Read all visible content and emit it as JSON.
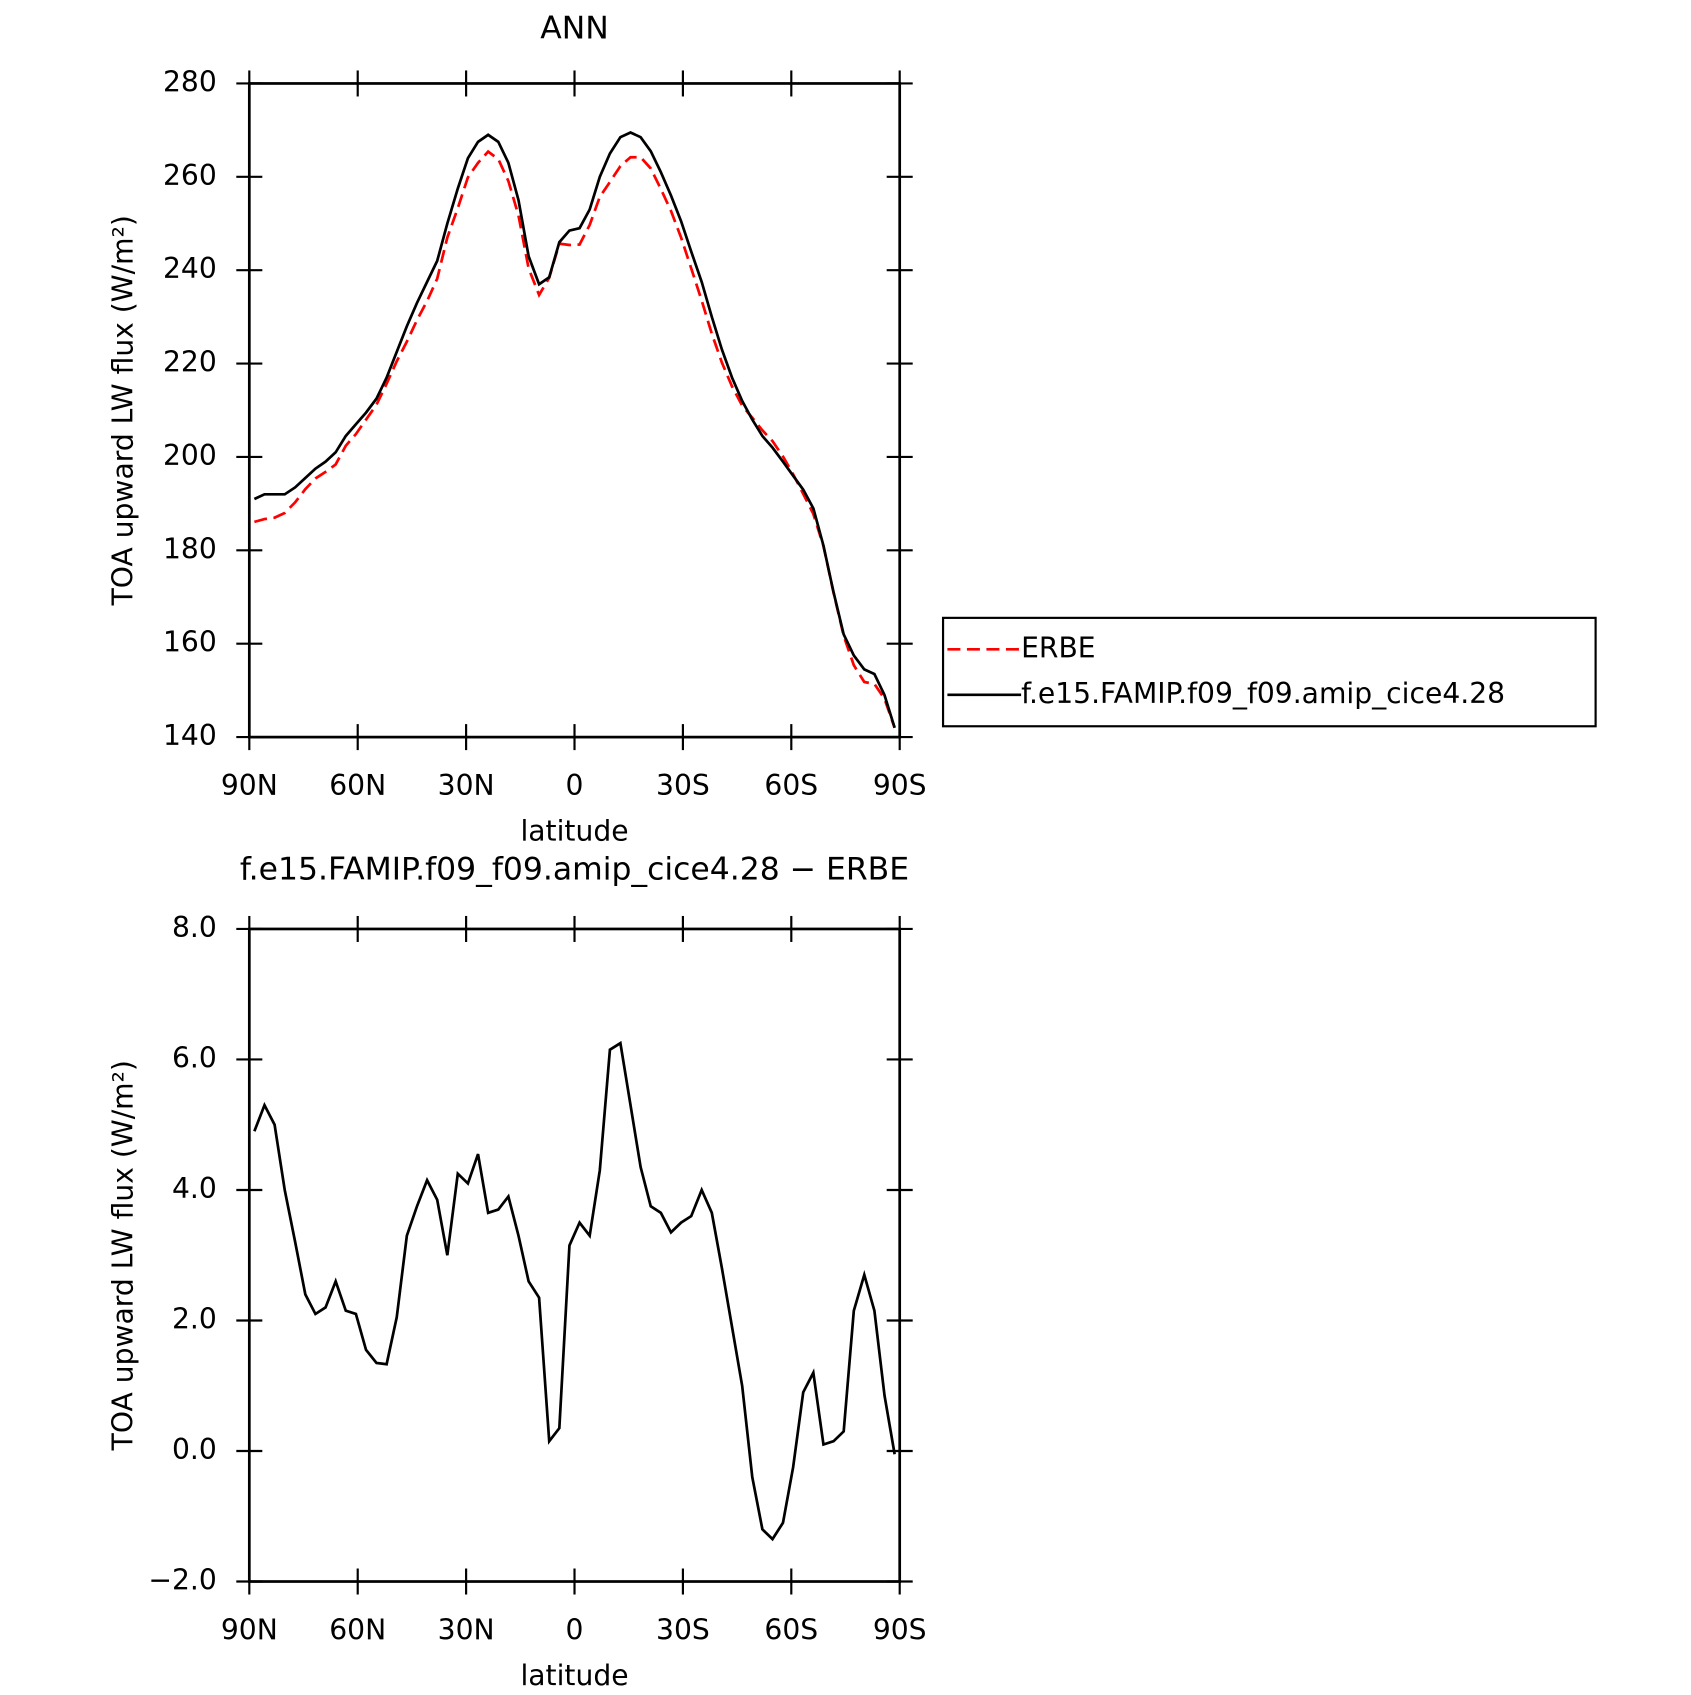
{
  "chart_data": [
    {
      "type": "line",
      "title": "ANN",
      "x_label": "latitude",
      "y_label": "TOA upward LW flux (W/m²)",
      "x": [
        88.6,
        85.8,
        83.0,
        80.2,
        77.3,
        74.5,
        71.7,
        68.9,
        66.1,
        63.3,
        60.5,
        57.7,
        54.8,
        52.0,
        49.2,
        46.4,
        43.6,
        40.8,
        38.0,
        35.2,
        32.3,
        29.5,
        26.7,
        23.9,
        21.1,
        18.3,
        15.5,
        12.7,
        9.8,
        7.0,
        4.2,
        1.4,
        -1.4,
        -4.2,
        -7.0,
        -9.8,
        -12.7,
        -15.5,
        -18.3,
        -21.1,
        -23.9,
        -26.7,
        -29.5,
        -32.3,
        -35.2,
        -38.0,
        -40.8,
        -43.6,
        -46.4,
        -49.2,
        -52.0,
        -54.8,
        -57.7,
        -60.5,
        -63.3,
        -66.1,
        -68.9,
        -71.7,
        -74.5,
        -77.3,
        -80.2,
        -83.0,
        -85.8,
        -88.6
      ],
      "series": [
        {
          "name": "ERBE",
          "color": "#ff0000",
          "dash": true,
          "values": [
            186.1,
            186.7,
            187,
            188,
            190.3,
            193.1,
            195.4,
            196.8,
            198.4,
            202.4,
            204.9,
            208,
            211.2,
            215.7,
            220.5,
            224.7,
            229.3,
            233.4,
            238.2,
            247,
            253.3,
            259.9,
            263,
            265.4,
            263.8,
            259.1,
            251.7,
            240.4,
            234.7,
            238.4,
            245.7,
            245.4,
            245.5,
            249.7,
            255.7,
            258.9,
            262.3,
            264.2,
            264.2,
            261.8,
            257.4,
            252.7,
            247,
            240.4,
            233.5,
            226.4,
            220.2,
            215.1,
            211,
            208.4,
            205.7,
            203.4,
            200.1,
            196.3,
            192.1,
            187.8,
            180.9,
            170.9,
            161.7,
            155.4,
            151.8,
            151.4,
            148.2,
            142.0
          ]
        },
        {
          "name": "f.e15.FAMIP.f09_f09.amip_cice4.28",
          "color": "#000000",
          "dash": false,
          "values": [
            191,
            192,
            192,
            192,
            193.5,
            195.5,
            197.5,
            199,
            201,
            204.5,
            207,
            209.5,
            212.5,
            217,
            222.5,
            228,
            233,
            237.5,
            242,
            250,
            257.5,
            264,
            267.5,
            269,
            267.5,
            263,
            255,
            243,
            237,
            238.5,
            246,
            248.5,
            249,
            253,
            260,
            265,
            268.5,
            269.5,
            268.5,
            265.5,
            261,
            256,
            250.5,
            244,
            237.5,
            230,
            223,
            217,
            212,
            208,
            204.5,
            202,
            199,
            196,
            193,
            189,
            181,
            171,
            162,
            157.5,
            154.5,
            153.5,
            149,
            142
          ]
        }
      ],
      "xlim": [
        90,
        -90
      ],
      "xticks": [
        {
          "value": 90,
          "label": "90N"
        },
        {
          "value": 60,
          "label": "60N"
        },
        {
          "value": 30,
          "label": "30N"
        },
        0,
        {
          "value": -30,
          "label": "30S"
        },
        {
          "value": -60,
          "label": "60S"
        },
        {
          "value": -90,
          "label": "90S"
        }
      ],
      "ylim": [
        140,
        280
      ],
      "yticks": [
        140,
        160,
        180,
        200,
        220,
        240,
        260,
        280
      ],
      "legend": "right"
    },
    {
      "type": "line",
      "title": "f.e15.FAMIP.f09_f09.amip_cice4.28 − ERBE",
      "x_label": "latitude",
      "y_label": "TOA upward LW flux (W/m²)",
      "x": [
        88.6,
        85.8,
        83.0,
        80.2,
        77.3,
        74.5,
        71.7,
        68.9,
        66.1,
        63.3,
        60.5,
        57.7,
        54.8,
        52.0,
        49.2,
        46.4,
        43.6,
        40.8,
        38.0,
        35.2,
        32.3,
        29.5,
        26.7,
        23.9,
        21.1,
        18.3,
        15.5,
        12.7,
        9.8,
        7.0,
        4.2,
        1.4,
        -1.4,
        -4.2,
        -7.0,
        -9.8,
        -12.7,
        -15.5,
        -18.3,
        -21.1,
        -23.9,
        -26.7,
        -29.5,
        -32.3,
        -35.2,
        -38.0,
        -40.8,
        -43.6,
        -46.4,
        -49.2,
        -52.0,
        -54.8,
        -57.7,
        -60.5,
        -63.3,
        -66.1,
        -68.9,
        -71.7,
        -74.5,
        -77.3,
        -80.2,
        -83.0,
        -85.8,
        -88.6
      ],
      "series": [
        {
          "color": "#000000",
          "dash": false,
          "values": [
            4.9,
            5.3,
            5.0,
            4.0,
            3.2,
            2.4,
            2.1,
            2.2,
            2.6,
            2.15,
            2.1,
            1.55,
            1.35,
            1.33,
            2.05,
            3.3,
            3.75,
            4.15,
            3.85,
            3.0,
            4.25,
            4.1,
            4.55,
            3.65,
            3.7,
            3.9,
            3.3,
            2.6,
            2.35,
            0.15,
            0.35,
            3.15,
            3.5,
            3.3,
            4.3,
            6.15,
            6.25,
            5.3,
            4.35,
            3.75,
            3.65,
            3.35,
            3.5,
            3.6,
            4.0,
            3.65,
            2.8,
            1.9,
            1.0,
            -0.4,
            -1.2,
            -1.35,
            -1.1,
            -0.25,
            0.9,
            1.2,
            0.1,
            0.15,
            0.3,
            2.15,
            2.7,
            2.15,
            0.85,
            -0.05
          ]
        }
      ],
      "xlim": [
        90,
        -90
      ],
      "xticks": [
        {
          "value": 90,
          "label": "90N"
        },
        {
          "value": 60,
          "label": "60N"
        },
        {
          "value": 30,
          "label": "30N"
        },
        0,
        {
          "value": -30,
          "label": "30S"
        },
        {
          "value": -60,
          "label": "60S"
        },
        {
          "value": -90,
          "label": "90S"
        }
      ],
      "ylim": [
        -2,
        8
      ],
      "yticks": [
        {
          "value": -2,
          "label": "−2.0"
        },
        {
          "value": 0,
          "label": "0.0"
        },
        {
          "value": 2,
          "label": "2.0"
        },
        {
          "value": 4,
          "label": "4.0"
        },
        {
          "value": 6,
          "label": "6.0"
        },
        {
          "value": 8,
          "label": "8.0"
        }
      ]
    }
  ]
}
